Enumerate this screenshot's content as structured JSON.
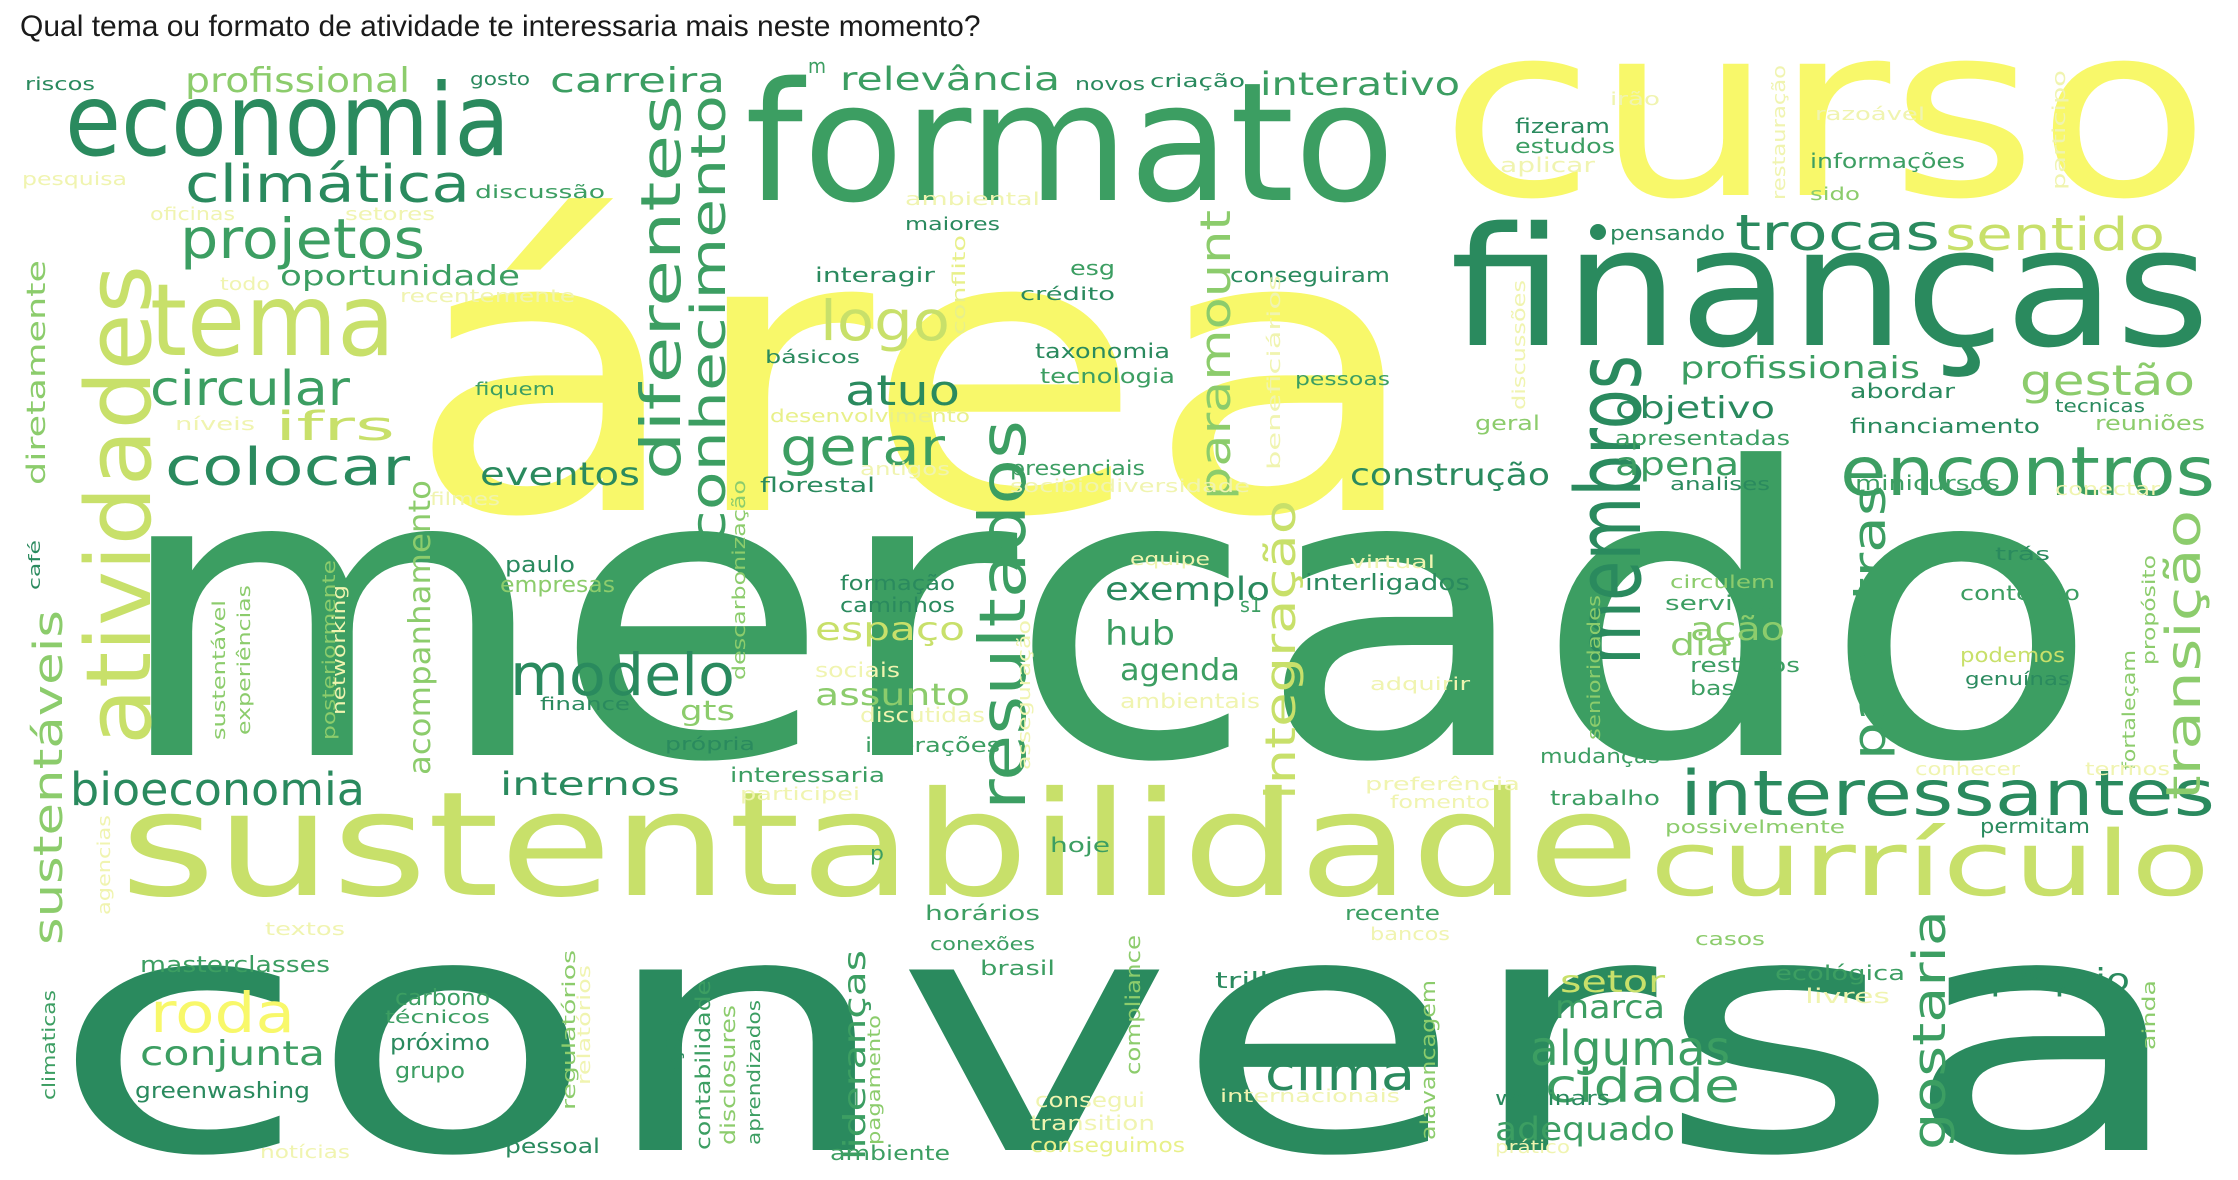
{
  "title": "Qual tema ou formato de atividade te interessaria mais neste momento?",
  "palette": {
    "dg": "#2a8a5e",
    "mg": "#3c9e62",
    "lg": "#8ccc6c",
    "yg": "#c8e06a",
    "y": "#f8f86a",
    "ly": "#e8f08a",
    "py": "#f0f4b0",
    "bg": "#ffffff"
  },
  "words": [
    {
      "text": "mercado",
      "color": "mg"
    },
    {
      "text": "conversa",
      "color": "dg"
    },
    {
      "text": "área",
      "color": "y"
    },
    {
      "text": "curso",
      "color": "y"
    },
    {
      "text": "formato",
      "color": "mg"
    },
    {
      "text": "finanças",
      "color": "dg"
    },
    {
      "text": "sustentabilidade",
      "color": "yg"
    },
    {
      "text": "economia",
      "color": "dg"
    },
    {
      "text": "membros",
      "color": "dg"
    },
    {
      "text": "atividades",
      "color": "yg"
    },
    {
      "text": "tema",
      "color": "yg"
    },
    {
      "text": "currículo",
      "color": "yg"
    },
    {
      "text": "encontros",
      "color": "mg"
    },
    {
      "text": "interessantes",
      "color": "dg"
    },
    {
      "text": "resultados",
      "color": "mg"
    },
    {
      "text": "conhecimento",
      "color": "mg"
    },
    {
      "text": "diferentes",
      "color": "mg"
    },
    {
      "text": "modelo",
      "color": "dg"
    },
    {
      "text": "bioeconomia",
      "color": "dg"
    },
    {
      "text": "projetos",
      "color": "mg"
    },
    {
      "text": "climática",
      "color": "dg"
    },
    {
      "text": "trocas",
      "color": "dg"
    },
    {
      "text": "sentido",
      "color": "yg"
    },
    {
      "text": "logo",
      "color": "yg"
    },
    {
      "text": "gerar",
      "color": "mg"
    },
    {
      "text": "circular",
      "color": "mg"
    },
    {
      "text": "colocar",
      "color": "dg"
    },
    {
      "text": "roda",
      "color": "y"
    },
    {
      "text": "clima",
      "color": "dg"
    },
    {
      "text": "algumas",
      "color": "mg"
    },
    {
      "text": "cidade",
      "color": "mg"
    },
    {
      "text": "palestras",
      "color": "mg"
    },
    {
      "text": "transição",
      "color": "lg"
    },
    {
      "text": "gostaria",
      "color": "mg"
    },
    {
      "text": "integração",
      "color": "yg"
    },
    {
      "text": "paramount",
      "color": "lg"
    },
    {
      "text": "sustentáveis",
      "color": "lg"
    },
    {
      "text": "ifrs",
      "color": "yg"
    },
    {
      "text": "atuo",
      "color": "dg"
    },
    {
      "text": "gestão",
      "color": "lg"
    },
    {
      "text": "profissionais",
      "color": "mg"
    },
    {
      "text": "carreira",
      "color": "mg"
    },
    {
      "text": "profissional",
      "color": "lg"
    },
    {
      "text": "relevância",
      "color": "mg"
    },
    {
      "text": "interativo",
      "color": "mg"
    },
    {
      "text": "oportunidade",
      "color": "mg"
    },
    {
      "text": "eventos",
      "color": "dg"
    },
    {
      "text": "construção",
      "color": "dg"
    },
    {
      "text": "apenas",
      "color": "mg"
    },
    {
      "text": "objetivo",
      "color": "dg"
    },
    {
      "text": "exemplo",
      "color": "dg"
    },
    {
      "text": "hub",
      "color": "mg"
    },
    {
      "text": "agenda",
      "color": "mg"
    },
    {
      "text": "espaço",
      "color": "yg"
    },
    {
      "text": "assunto",
      "color": "lg"
    },
    {
      "text": "ação",
      "color": "lg"
    },
    {
      "text": "dia",
      "color": "lg"
    },
    {
      "text": "internos",
      "color": "dg"
    },
    {
      "text": "conjunta",
      "color": "mg"
    },
    {
      "text": "acompanhamento",
      "color": "lg"
    },
    {
      "text": "marca",
      "color": "mg"
    },
    {
      "text": "setor",
      "color": "yg"
    },
    {
      "text": "adequado",
      "color": "mg"
    },
    {
      "text": "lideranças",
      "color": "mg"
    },
    {
      "text": "próprio",
      "color": "dg"
    },
    {
      "text": "diretamente",
      "color": "lg"
    },
    {
      "text": "gts",
      "color": "lg"
    },
    {
      "text": "riscos",
      "color": "dg"
    },
    {
      "text": "gosto",
      "color": "dg"
    },
    {
      "text": "pesquisa",
      "color": "py"
    },
    {
      "text": "discussão",
      "color": "mg"
    },
    {
      "text": "oficinas",
      "color": "py"
    },
    {
      "text": "setores",
      "color": "py"
    },
    {
      "text": "todo",
      "color": "py"
    },
    {
      "text": "recentemente",
      "color": "py"
    },
    {
      "text": "fiquem",
      "color": "mg"
    },
    {
      "text": "níveis",
      "color": "py"
    },
    {
      "text": "novos",
      "color": "dg"
    },
    {
      "text": "criação",
      "color": "dg"
    },
    {
      "text": "ambiental",
      "color": "py"
    },
    {
      "text": "maiores",
      "color": "dg"
    },
    {
      "text": "interagir",
      "color": "dg"
    },
    {
      "text": "esg",
      "color": "mg"
    },
    {
      "text": "crédito",
      "color": "dg"
    },
    {
      "text": "conflito",
      "color": "ly"
    },
    {
      "text": "conseguiram",
      "color": "dg"
    },
    {
      "text": "taxonomia",
      "color": "dg"
    },
    {
      "text": "tecnologia",
      "color": "mg"
    },
    {
      "text": "básicos",
      "color": "dg"
    },
    {
      "text": "desenvolvimento",
      "color": "ly"
    },
    {
      "text": "beneficiários",
      "color": "py"
    },
    {
      "text": "pessoas",
      "color": "mg"
    },
    {
      "text": "antigos",
      "color": "py"
    },
    {
      "text": "presenciais",
      "color": "mg"
    },
    {
      "text": "socibiodiversidade",
      "color": "py"
    },
    {
      "text": "florestal",
      "color": "dg"
    },
    {
      "text": "filmes",
      "color": "py"
    },
    {
      "text": "descarbonização",
      "color": "lg"
    },
    {
      "text": "paulo",
      "color": "dg"
    },
    {
      "text": "empresas",
      "color": "lg"
    },
    {
      "text": "equipe",
      "color": "py"
    },
    {
      "text": "virtual",
      "color": "py"
    },
    {
      "text": "interligados",
      "color": "dg"
    },
    {
      "text": "formação",
      "color": "dg"
    },
    {
      "text": "caminhos",
      "color": "dg"
    },
    {
      "text": "sociais",
      "color": "py"
    },
    {
      "text": "discutidas",
      "color": "py"
    },
    {
      "text": "posteriormente",
      "color": "lg"
    },
    {
      "text": "networking",
      "color": "py"
    },
    {
      "text": "experiências",
      "color": "lg"
    },
    {
      "text": "sustentável",
      "color": "lg"
    },
    {
      "text": "finance",
      "color": "dg"
    },
    {
      "text": "própria",
      "color": "dg"
    },
    {
      "text": "interações",
      "color": "mg"
    },
    {
      "text": "asseguração",
      "color": "py"
    },
    {
      "text": "ambientais",
      "color": "py"
    },
    {
      "text": "adquirir",
      "color": "py"
    },
    {
      "text": "interessaria",
      "color": "mg"
    },
    {
      "text": "participei",
      "color": "py"
    },
    {
      "text": "preferência",
      "color": "py"
    },
    {
      "text": "fomento",
      "color": "py"
    },
    {
      "text": "trabalho",
      "color": "mg"
    },
    {
      "text": "possivelmente",
      "color": "lg"
    },
    {
      "text": "permitam",
      "color": "dg"
    },
    {
      "text": "hoje",
      "color": "mg"
    },
    {
      "text": "horários",
      "color": "mg"
    },
    {
      "text": "conexões",
      "color": "mg"
    },
    {
      "text": "brasil",
      "color": "mg"
    },
    {
      "text": "recente",
      "color": "mg"
    },
    {
      "text": "bancos",
      "color": "py"
    },
    {
      "text": "casos",
      "color": "lg"
    },
    {
      "text": "masterclasses",
      "color": "mg"
    },
    {
      "text": "carbono",
      "color": "mg"
    },
    {
      "text": "técnicos",
      "color": "mg"
    },
    {
      "text": "próximo",
      "color": "dg"
    },
    {
      "text": "grupo",
      "color": "mg"
    },
    {
      "text": "greenwashing",
      "color": "dg"
    },
    {
      "text": "regulatórios",
      "color": "lg"
    },
    {
      "text": "relatórios",
      "color": "py"
    },
    {
      "text": "mineração",
      "color": "dg"
    },
    {
      "text": "contabilidade",
      "color": "mg"
    },
    {
      "text": "disclosures",
      "color": "lg"
    },
    {
      "text": "aprendizados",
      "color": "mg"
    },
    {
      "text": "pagamento",
      "color": "lg"
    },
    {
      "text": "compliance",
      "color": "lg"
    },
    {
      "text": "consegui",
      "color": "py"
    },
    {
      "text": "transition",
      "color": "py"
    },
    {
      "text": "conseguimos",
      "color": "ly"
    },
    {
      "text": "trilha",
      "color": "dg"
    },
    {
      "text": "internacionais",
      "color": "py"
    },
    {
      "text": "alavancagem",
      "color": "lg"
    },
    {
      "text": "webinars",
      "color": "dg"
    },
    {
      "text": "prático",
      "color": "py"
    },
    {
      "text": "ecológica",
      "color": "mg"
    },
    {
      "text": "livres",
      "color": "py"
    },
    {
      "text": "ainda",
      "color": "lg"
    },
    {
      "text": "pessoal",
      "color": "dg"
    },
    {
      "text": "ambiente",
      "color": "mg"
    },
    {
      "text": "notícias",
      "color": "py"
    },
    {
      "text": "textos",
      "color": "py"
    },
    {
      "text": "climaticas",
      "color": "mg"
    },
    {
      "text": "agencias",
      "color": "py"
    },
    {
      "text": "café",
      "color": "dg"
    },
    {
      "text": "fizeram",
      "color": "dg"
    },
    {
      "text": "estudos",
      "color": "mg"
    },
    {
      "text": "aplicar",
      "color": "py"
    },
    {
      "text": "irão",
      "color": "py"
    },
    {
      "text": "razoável",
      "color": "py"
    },
    {
      "text": "restauração",
      "color": "py"
    },
    {
      "text": "participo",
      "color": "py"
    },
    {
      "text": "informações",
      "color": "mg"
    },
    {
      "text": "sido",
      "color": "lg"
    },
    {
      "text": "pensando",
      "color": "dg"
    },
    {
      "text": "discussões",
      "color": "py"
    },
    {
      "text": "abordar",
      "color": "dg"
    },
    {
      "text": "tecnicas",
      "color": "dg"
    },
    {
      "text": "geral",
      "color": "lg"
    },
    {
      "text": "apresentadas",
      "color": "mg"
    },
    {
      "text": "financiamento",
      "color": "dg"
    },
    {
      "text": "reuniões",
      "color": "lg"
    },
    {
      "text": "minicursos",
      "color": "mg"
    },
    {
      "text": "conectar",
      "color": "py"
    },
    {
      "text": "analises",
      "color": "dg"
    },
    {
      "text": "trás",
      "color": "dg"
    },
    {
      "text": "conteúdo",
      "color": "mg"
    },
    {
      "text": "circulem",
      "color": "lg"
    },
    {
      "text": "serviços",
      "color": "mg"
    },
    {
      "text": "senioridades",
      "color": "lg"
    },
    {
      "text": "podemos",
      "color": "yg"
    },
    {
      "text": "genuínas",
      "color": "dg"
    },
    {
      "text": "restritos",
      "color": "mg"
    },
    {
      "text": "base",
      "color": "mg"
    },
    {
      "text": "propósito",
      "color": "lg"
    },
    {
      "text": "fortaleçam",
      "color": "lg"
    },
    {
      "text": "mudanças",
      "color": "mg"
    },
    {
      "text": "conhecer",
      "color": "py"
    },
    {
      "text": "termos",
      "color": "py"
    },
    {
      "text": "m",
      "color": "mg"
    },
    {
      "text": "p",
      "color": "mg"
    },
    {
      "text": "s1",
      "color": "mg"
    }
  ]
}
